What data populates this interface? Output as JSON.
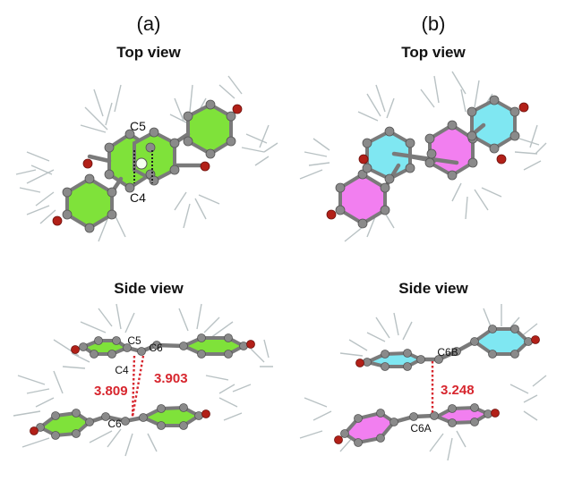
{
  "panels": {
    "a": {
      "label": "(a)",
      "top_title": "Top view",
      "side_title": "Side view",
      "top_atoms": {
        "upper": "C5",
        "lower": "C4"
      },
      "side_atoms": {
        "c5": "C5",
        "c6_upper": "C6",
        "c4": "C4",
        "c6_lower": "C6"
      },
      "distances": {
        "left": "3.809",
        "right": "3.903"
      }
    },
    "b": {
      "label": "(b)",
      "top_title": "Top view",
      "side_title": "Side view",
      "side_atoms": {
        "upper": "C6B",
        "lower": "C6A"
      },
      "distances": {
        "center": "3.248"
      }
    }
  },
  "colors": {
    "ring_green": "#7fe23a",
    "ring_cyan": "#7fe7f2",
    "ring_magenta": "#f27ff0",
    "carbon": "#8a8a8a",
    "oxygen": "#b22018",
    "hydrogen_wire": "#b9c2c4",
    "distance_red": "#d7262e"
  }
}
